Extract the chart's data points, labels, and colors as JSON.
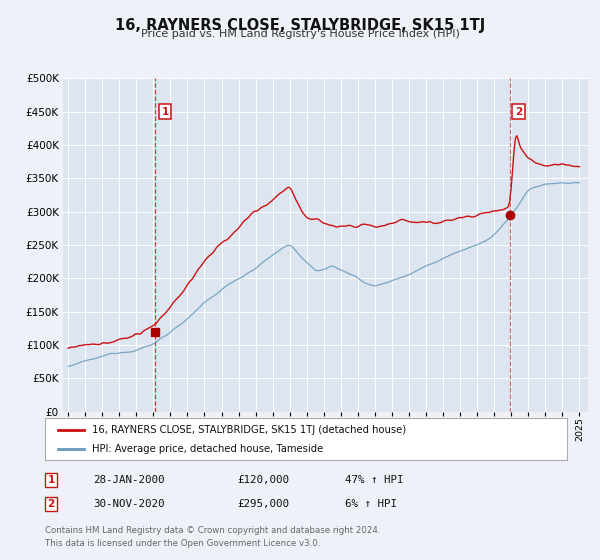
{
  "title": "16, RAYNERS CLOSE, STALYBRIDGE, SK15 1TJ",
  "subtitle": "Price paid vs. HM Land Registry's House Price Index (HPI)",
  "bg_color": "#eef2f8",
  "plot_bg_color": "#dde6f0",
  "grid_color": "#ffffff",
  "red_color": "#cc1111",
  "blue_color": "#6699bb",
  "dashed_red": "#dd4444",
  "dashed_gray": "#bb8888",
  "ylim": [
    0,
    500000
  ],
  "yticks": [
    0,
    50000,
    100000,
    150000,
    200000,
    250000,
    300000,
    350000,
    400000,
    450000,
    500000
  ],
  "xlim_start": 1994.7,
  "xlim_end": 2025.5,
  "xticks": [
    1995,
    1996,
    1997,
    1998,
    1999,
    2000,
    2001,
    2002,
    2003,
    2004,
    2005,
    2006,
    2007,
    2008,
    2009,
    2010,
    2011,
    2012,
    2013,
    2014,
    2015,
    2016,
    2017,
    2018,
    2019,
    2020,
    2021,
    2022,
    2023,
    2024,
    2025
  ],
  "ann1_x": 2000.08,
  "ann1_y": 120000,
  "ann2_x": 2020.92,
  "ann2_y": 295000,
  "legend_label1": "16, RAYNERS CLOSE, STALYBRIDGE, SK15 1TJ (detached house)",
  "legend_label2": "HPI: Average price, detached house, Tameside",
  "row1_label": "1",
  "row1_date": "28-JAN-2000",
  "row1_price": "£120,000",
  "row1_hpi": "47% ↑ HPI",
  "row2_label": "2",
  "row2_date": "30-NOV-2020",
  "row2_price": "£295,000",
  "row2_hpi": "6% ↑ HPI",
  "footer1": "Contains HM Land Registry data © Crown copyright and database right 2024.",
  "footer2": "This data is licensed under the Open Government Licence v3.0."
}
